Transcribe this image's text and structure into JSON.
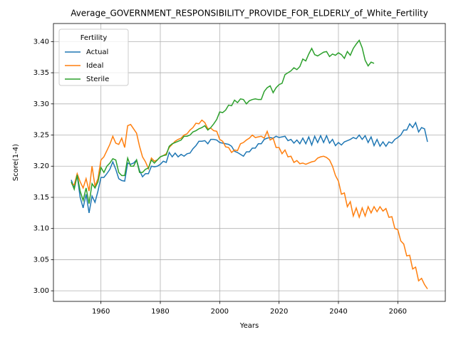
{
  "chart_data": {
    "type": "line",
    "title": "Average_GOVERNMENT_RESPONSIBILITY_PROVIDE_FOR_ELDERLY_of_White_Fertility",
    "x_label": "Years",
    "y_label": "Score(1-4)",
    "legend_title": "Fertility",
    "legend": "upper left",
    "grid": true,
    "x": [
      1950,
      1951,
      1952,
      1953,
      1954,
      1955,
      1956,
      1957,
      1958,
      1959,
      1960,
      1961,
      1962,
      1963,
      1964,
      1965,
      1966,
      1967,
      1968,
      1969,
      1970,
      1971,
      1972,
      1973,
      1974,
      1975,
      1976,
      1977,
      1978,
      1979,
      1980,
      1981,
      1982,
      1983,
      1984,
      1985,
      1986,
      1987,
      1988,
      1989,
      1990,
      1991,
      1992,
      1993,
      1994,
      1995,
      1996,
      1997,
      1998,
      1999,
      2000,
      2001,
      2002,
      2003,
      2004,
      2005,
      2006,
      2007,
      2008,
      2009,
      2010,
      2011,
      2012,
      2013,
      2014,
      2015,
      2016,
      2017,
      2018,
      2019,
      2020,
      2021,
      2022,
      2023,
      2024,
      2025,
      2026,
      2027,
      2028,
      2029,
      2030,
      2031,
      2032,
      2033,
      2034,
      2035,
      2036,
      2037,
      2038,
      2039,
      2040,
      2041,
      2042,
      2043,
      2044,
      2045,
      2046,
      2047,
      2048,
      2049,
      2050,
      2051,
      2052,
      2053,
      2054,
      2055,
      2056,
      2057,
      2058,
      2059,
      2060,
      2061,
      2062,
      2063,
      2064,
      2065,
      2066,
      2067,
      2068,
      2069,
      2070
    ],
    "series": [
      {
        "name": "Actual",
        "color": "#1f77b4",
        "values": [
          3.178,
          3.165,
          3.185,
          3.15,
          3.133,
          3.155,
          3.125,
          3.152,
          3.142,
          3.16,
          3.182,
          3.182,
          3.188,
          3.195,
          3.207,
          3.195,
          3.18,
          3.177,
          3.176,
          3.205,
          3.203,
          3.205,
          3.21,
          3.193,
          3.183,
          3.188,
          3.188,
          3.2,
          3.199,
          3.2,
          3.203,
          3.208,
          3.206,
          3.222,
          3.215,
          3.221,
          3.215,
          3.219,
          3.216,
          3.22,
          3.221,
          3.228,
          3.233,
          3.24,
          3.24,
          3.241,
          3.236,
          3.243,
          3.243,
          3.242,
          3.238,
          3.237,
          3.236,
          3.235,
          3.232,
          3.224,
          3.222,
          3.219,
          3.216,
          3.223,
          3.223,
          3.229,
          3.229,
          3.236,
          3.236,
          3.243,
          3.245,
          3.246,
          3.245,
          3.248,
          3.246,
          3.247,
          3.248,
          3.241,
          3.243,
          3.237,
          3.242,
          3.236,
          3.245,
          3.236,
          3.247,
          3.234,
          3.248,
          3.238,
          3.249,
          3.238,
          3.249,
          3.237,
          3.243,
          3.233,
          3.238,
          3.234,
          3.239,
          3.241,
          3.243,
          3.246,
          3.244,
          3.25,
          3.243,
          3.249,
          3.238,
          3.247,
          3.233,
          3.243,
          3.232,
          3.239,
          3.232,
          3.239,
          3.237,
          3.243,
          3.246,
          3.25,
          3.258,
          3.258,
          3.268,
          3.262,
          3.27,
          3.255,
          3.262,
          3.26,
          3.239
        ]
      },
      {
        "name": "Ideal",
        "color": "#ff7f0e",
        "values": [
          3.172,
          3.17,
          3.188,
          3.175,
          3.165,
          3.18,
          3.16,
          3.2,
          3.168,
          3.18,
          3.21,
          3.215,
          3.225,
          3.235,
          3.248,
          3.237,
          3.235,
          3.245,
          3.23,
          3.265,
          3.267,
          3.26,
          3.253,
          3.232,
          3.215,
          3.207,
          3.196,
          3.213,
          3.208,
          3.21,
          3.215,
          3.217,
          3.22,
          3.23,
          3.235,
          3.24,
          3.243,
          3.245,
          3.25,
          3.252,
          3.258,
          3.262,
          3.269,
          3.268,
          3.274,
          3.27,
          3.26,
          3.261,
          3.257,
          3.256,
          3.243,
          3.24,
          3.231,
          3.23,
          3.222,
          3.226,
          3.225,
          3.236,
          3.238,
          3.242,
          3.245,
          3.25,
          3.246,
          3.247,
          3.248,
          3.245,
          3.256,
          3.242,
          3.245,
          3.23,
          3.23,
          3.22,
          3.226,
          3.215,
          3.216,
          3.206,
          3.209,
          3.204,
          3.205,
          3.203,
          3.205,
          3.207,
          3.208,
          3.213,
          3.215,
          3.216,
          3.214,
          3.21,
          3.2,
          3.185,
          3.176,
          3.155,
          3.157,
          3.135,
          3.143,
          3.12,
          3.133,
          3.118,
          3.133,
          3.12,
          3.135,
          3.125,
          3.135,
          3.127,
          3.135,
          3.128,
          3.132,
          3.118,
          3.119,
          3.1,
          3.098,
          3.08,
          3.075,
          3.056,
          3.057,
          3.035,
          3.038,
          3.016,
          3.02,
          3.01,
          3.003
        ]
      },
      {
        "name": "Sterile",
        "color": "#2ca02c",
        "values": [
          3.175,
          3.163,
          3.186,
          3.16,
          3.145,
          3.165,
          3.14,
          3.172,
          3.165,
          3.175,
          3.198,
          3.19,
          3.2,
          3.205,
          3.212,
          3.21,
          3.19,
          3.185,
          3.185,
          3.213,
          3.2,
          3.2,
          3.21,
          3.19,
          3.19,
          3.195,
          3.197,
          3.21,
          3.205,
          3.21,
          3.215,
          3.217,
          3.218,
          3.232,
          3.236,
          3.238,
          3.24,
          3.242,
          3.248,
          3.248,
          3.25,
          3.255,
          3.257,
          3.26,
          3.262,
          3.265,
          3.258,
          3.262,
          3.268,
          3.275,
          3.287,
          3.286,
          3.29,
          3.298,
          3.297,
          3.306,
          3.302,
          3.308,
          3.307,
          3.3,
          3.305,
          3.307,
          3.308,
          3.307,
          3.307,
          3.32,
          3.326,
          3.329,
          3.318,
          3.326,
          3.331,
          3.333,
          3.347,
          3.35,
          3.353,
          3.358,
          3.355,
          3.36,
          3.372,
          3.369,
          3.38,
          3.389,
          3.379,
          3.377,
          3.38,
          3.383,
          3.384,
          3.376,
          3.38,
          3.378,
          3.382,
          3.379,
          3.373,
          3.384,
          3.378,
          3.389,
          3.396,
          3.402,
          3.39,
          3.37,
          3.361,
          3.367,
          3.365,
          null,
          null,
          null,
          null,
          null,
          null,
          null,
          null,
          null,
          null,
          null,
          null,
          null,
          null,
          null,
          null,
          null,
          null
        ]
      }
    ],
    "xlim": [
      1944,
      2076
    ],
    "xticks": [
      1960,
      1980,
      2000,
      2020,
      2040,
      2060
    ],
    "ylim": [
      2.983,
      3.429
    ],
    "yticks": [
      {
        "value": 3,
        "label": "3.00"
      },
      3.05,
      {
        "value": 3.1,
        "label": "3.10"
      },
      3.15,
      {
        "value": 3.2,
        "label": "3.20"
      },
      3.25,
      {
        "value": 3.3,
        "label": "3.30"
      },
      3.35,
      {
        "value": 3.4,
        "label": "3.40"
      }
    ]
  }
}
